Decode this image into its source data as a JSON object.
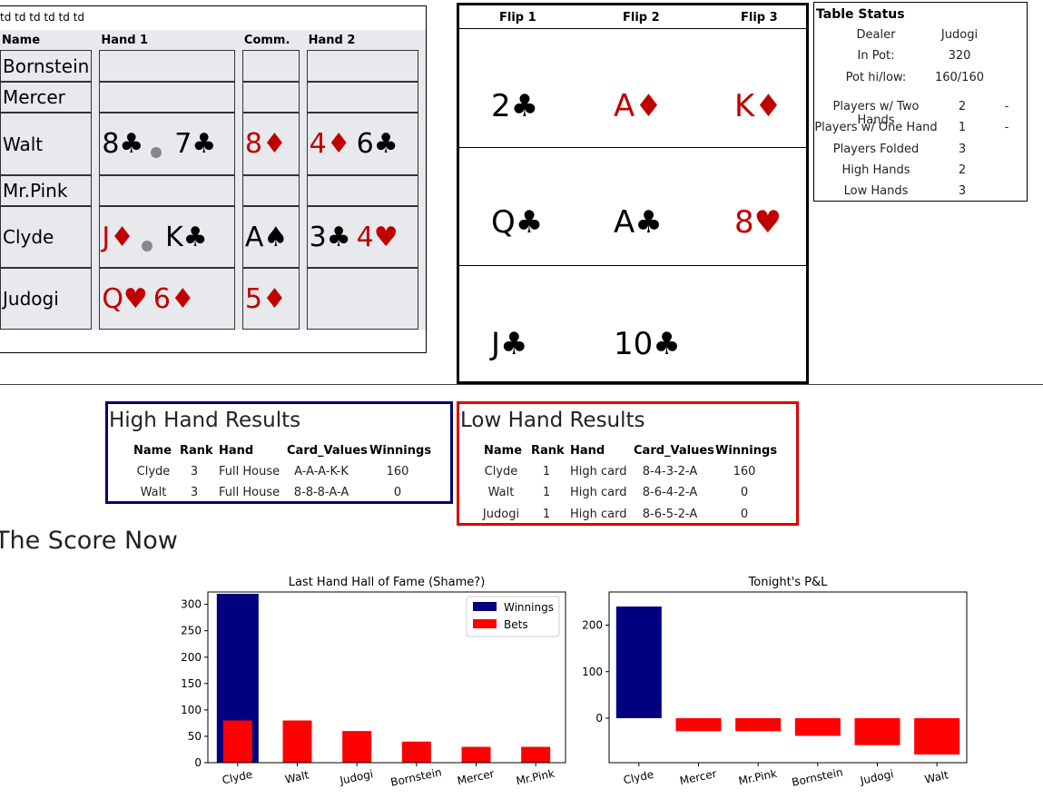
{
  "stray_text": "td td td td td td",
  "players": {
    "headers": [
      "Name",
      "Hand 1",
      "Comm.",
      "Hand 2"
    ],
    "rows": [
      {
        "name": "Bornstein",
        "hand1": [],
        "comm": [],
        "hand2": []
      },
      {
        "name": "Mercer",
        "hand1": [],
        "comm": [],
        "hand2": []
      },
      {
        "name": "Walt",
        "hand1": [
          {
            "rank": "8",
            "suit": "♣",
            "color": "black"
          },
          "dot",
          {
            "rank": "7",
            "suit": "♣",
            "color": "black"
          }
        ],
        "comm": [
          {
            "rank": "8",
            "suit": "♦",
            "color": "red"
          }
        ],
        "hand2": [
          {
            "rank": "4",
            "suit": "♦",
            "color": "red"
          },
          {
            "rank": "6",
            "suit": "♣",
            "color": "black"
          }
        ]
      },
      {
        "name": "Mr.Pink",
        "hand1": [],
        "comm": [],
        "hand2": []
      },
      {
        "name": "Clyde",
        "hand1": [
          {
            "rank": "J",
            "suit": "♦",
            "color": "red"
          },
          "dot",
          {
            "rank": "K",
            "suit": "♣",
            "color": "black"
          }
        ],
        "comm": [
          {
            "rank": "A",
            "suit": "♠",
            "color": "black"
          }
        ],
        "hand2": [
          {
            "rank": "3",
            "suit": "♣",
            "color": "black"
          },
          {
            "rank": "4",
            "suit": "♥",
            "color": "red"
          }
        ]
      },
      {
        "name": "Judogi",
        "hand1": [
          {
            "rank": "Q",
            "suit": "♥",
            "color": "red"
          },
          {
            "rank": "6",
            "suit": "♦",
            "color": "red"
          }
        ],
        "comm": [
          {
            "rank": "5",
            "suit": "♦",
            "color": "red"
          }
        ],
        "hand2": []
      }
    ]
  },
  "flips": {
    "headers": [
      "Flip 1",
      "Flip 2",
      "Flip 3"
    ],
    "rows": [
      [
        {
          "rank": "2",
          "suit": "♣",
          "color": "black"
        },
        {
          "rank": "A",
          "suit": "♦",
          "color": "red"
        },
        {
          "rank": "K",
          "suit": "♦",
          "color": "red"
        }
      ],
      [
        {
          "rank": "Q",
          "suit": "♣",
          "color": "black"
        },
        {
          "rank": "A",
          "suit": "♣",
          "color": "black"
        },
        {
          "rank": "8",
          "suit": "♥",
          "color": "red"
        }
      ],
      [
        {
          "rank": "J",
          "suit": "♣",
          "color": "black"
        },
        {
          "rank": "10",
          "suit": "♣",
          "color": "black"
        },
        null
      ]
    ]
  },
  "table_status": {
    "title": "Table Status",
    "dealer_label": "Dealer",
    "dealer": "Judogi",
    "pot_label": "In Pot:",
    "pot": "320",
    "hilo_label": "Pot hi/low:",
    "hilo": "160/160",
    "rows": [
      {
        "label": "Players w/ Two Hands",
        "value": "2",
        "extra": "-"
      },
      {
        "label": "Players w/ One Hand",
        "value": "1",
        "extra": "-"
      },
      {
        "label": "Players Folded",
        "value": "3",
        "extra": ""
      },
      {
        "label": "High Hands",
        "value": "2",
        "extra": ""
      },
      {
        "label": "Low Hands",
        "value": "3",
        "extra": ""
      }
    ]
  },
  "high_results": {
    "title": "High Hand Results",
    "headers": [
      "Name",
      "Rank",
      "Hand",
      "Card_Values",
      "Winnings"
    ],
    "rows": [
      [
        "Clyde",
        "3",
        "Full House",
        "A-A-A-K-K",
        "160"
      ],
      [
        "Walt",
        "3",
        "Full House",
        "8-8-8-A-A",
        "0"
      ]
    ]
  },
  "low_results": {
    "title": "Low Hand Results",
    "headers": [
      "Name",
      "Rank",
      "Hand",
      "Card_Values",
      "Winnings"
    ],
    "rows": [
      [
        "Clyde",
        "1",
        "High card",
        "8-4-3-2-A",
        "160"
      ],
      [
        "Walt",
        "1",
        "High card",
        "8-6-4-2-A",
        "0"
      ],
      [
        "Judogi",
        "1",
        "High card",
        "8-6-5-2-A",
        "0"
      ]
    ]
  },
  "score_title": "The Score Now",
  "chart_data": [
    {
      "type": "bar",
      "title": "Last Hand Hall of Fame (Shame?)",
      "categories": [
        "Clyde",
        "Walt",
        "Judogi",
        "Bornstein",
        "Mercer",
        "Mr.Pink"
      ],
      "series": [
        {
          "name": "Winnings",
          "color": "#000080",
          "values": [
            320,
            0,
            0,
            0,
            0,
            0
          ]
        },
        {
          "name": "Bets",
          "color": "#ff0000",
          "values": [
            80,
            80,
            60,
            40,
            30,
            30
          ]
        }
      ],
      "ylim": [
        0,
        320
      ],
      "yticks": [
        0,
        50,
        100,
        150,
        200,
        250,
        300
      ],
      "legend": "top-right"
    },
    {
      "type": "bar",
      "title": "Tonight's P&L",
      "categories": [
        "Clyde",
        "Mercer",
        "Mr.Pink",
        "Bornstein",
        "Judogi",
        "Walt"
      ],
      "values": [
        240,
        -28,
        -28,
        -38,
        -58,
        -78
      ],
      "colors": {
        "positive": "#000080",
        "negative": "#ff0000"
      },
      "ylim": [
        -80,
        240
      ],
      "yticks": [
        0,
        100,
        200
      ]
    }
  ]
}
